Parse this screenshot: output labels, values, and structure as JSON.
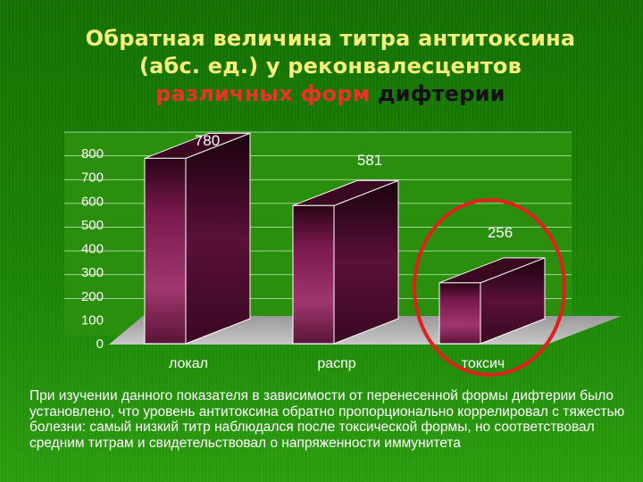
{
  "title": {
    "line1": "Обратная величина титра антитоксина",
    "line2": "(абс. ед.) у реконвалесцентов",
    "line3_highlight": "различных форм",
    "line3_rest": "дифтерии"
  },
  "colors": {
    "title_text": "#f5f07a",
    "title_highlight": "#e8322a",
    "bar": "#7a1a4e",
    "highlight_circle": "#e0201c"
  },
  "chart_data": {
    "type": "bar",
    "categories": [
      "локал",
      "распр",
      "токсич"
    ],
    "values": [
      780,
      581,
      256
    ],
    "data_labels": [
      "780",
      "581",
      "256"
    ],
    "ylim": [
      0,
      800
    ],
    "yticks": [
      0,
      100,
      200,
      300,
      400,
      500,
      600,
      700,
      800
    ],
    "grid": true,
    "highlighted_category": "токсич"
  },
  "caption": "При изучении данного показателя в зависимости от перенесенной формы дифтерии было установлено, что уровень антитоксина обратно пропорционально коррелировал с тяжестью болезни: самый низкий титр наблюдался после токсической формы, но соответствовал средним титрам и свидетельствовал о напряженности иммунитета"
}
